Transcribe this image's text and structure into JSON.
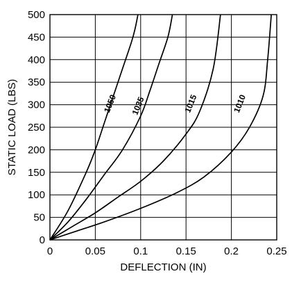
{
  "chart_data": {
    "type": "line",
    "xlabel": "DEFLECTION (IN)",
    "ylabel": "STATIC LOAD (LBS)",
    "xlim": [
      0,
      0.25
    ],
    "ylim": [
      0,
      500
    ],
    "x_ticks": [
      0,
      0.05,
      0.1,
      0.15,
      0.2,
      0.25
    ],
    "x_tick_labels": [
      "0",
      "0.05",
      "0.1",
      "0.15",
      "0.2",
      "0.25"
    ],
    "y_ticks": [
      0,
      50,
      100,
      150,
      200,
      250,
      300,
      350,
      400,
      450,
      500
    ],
    "y_tick_labels": [
      "0",
      "50",
      "100",
      "150",
      "200",
      "250",
      "300",
      "350",
      "400",
      "450",
      "500"
    ],
    "grid": true,
    "series": [
      {
        "name": "1050",
        "x": [
          0,
          0.02,
          0.04,
          0.05,
          0.06,
          0.07,
          0.08,
          0.09,
          0.094,
          0.097
        ],
        "y": [
          0,
          65,
          150,
          200,
          260,
          320,
          380,
          440,
          470,
          500
        ]
      },
      {
        "name": "1035",
        "x": [
          0,
          0.02,
          0.04,
          0.06,
          0.08,
          0.1,
          0.11,
          0.12,
          0.13,
          0.135
        ],
        "y": [
          0,
          40,
          90,
          145,
          200,
          275,
          330,
          390,
          450,
          500
        ]
      },
      {
        "name": "1015",
        "x": [
          0,
          0.025,
          0.05,
          0.075,
          0.1,
          0.125,
          0.15,
          0.165,
          0.18,
          0.188
        ],
        "y": [
          0,
          30,
          60,
          95,
          130,
          175,
          235,
          285,
          380,
          500
        ]
      },
      {
        "name": "1010",
        "x": [
          0,
          0.03,
          0.06,
          0.1,
          0.14,
          0.17,
          0.2,
          0.22,
          0.235,
          0.24,
          0.244
        ],
        "y": [
          0,
          20,
          40,
          70,
          105,
          140,
          195,
          250,
          320,
          400,
          500
        ]
      }
    ],
    "curve_labels": [
      {
        "text": "1050",
        "x": 0.069,
        "y": 300
      },
      {
        "text": "1035",
        "x": 0.1,
        "y": 295
      },
      {
        "text": "1015",
        "x": 0.158,
        "y": 300
      },
      {
        "text": "1010",
        "x": 0.212,
        "y": 300
      }
    ]
  }
}
